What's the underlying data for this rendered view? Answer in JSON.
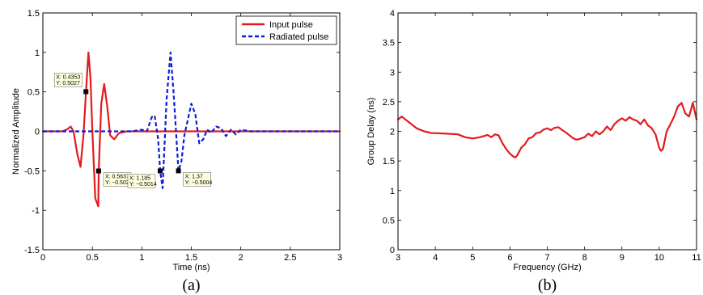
{
  "chart_data": [
    {
      "type": "line",
      "caption": "(a)",
      "xlabel": "Time (ns)",
      "ylabel": "Normalized Amplitude",
      "xlim": [
        0,
        3
      ],
      "ylim": [
        -1.5,
        1.5
      ],
      "xticks": [
        0,
        0.5,
        1,
        1.5,
        2,
        2.5,
        3
      ],
      "xtick_labels": [
        "0",
        "0.5",
        "1",
        "1.5",
        "2",
        "2.5",
        "3"
      ],
      "yticks": [
        -1.5,
        -1,
        -0.5,
        0,
        0.5,
        1,
        1.5
      ],
      "ytick_labels": [
        "-1.5",
        "-1",
        "-0.5",
        "0",
        "0.5",
        "1",
        "1.5"
      ],
      "legend_position": "top-right",
      "grid": false,
      "series": [
        {
          "name": "Input pulse",
          "color": "#e41a1c",
          "style": "solid",
          "x": [
            0,
            0.2,
            0.25,
            0.28,
            0.31,
            0.35,
            0.38,
            0.41,
            0.4353,
            0.46,
            0.48,
            0.5,
            0.53,
            0.56,
            0.5637,
            0.59,
            0.62,
            0.65,
            0.68,
            0.72,
            0.77,
            0.85,
            3
          ],
          "y": [
            0,
            0,
            0.03,
            0.06,
            0.0,
            -0.3,
            -0.45,
            -0.05,
            0.5027,
            1.0,
            0.7,
            0.0,
            -0.85,
            -0.95,
            -0.5021,
            0.35,
            0.6,
            0.32,
            -0.05,
            -0.1,
            -0.02,
            0,
            0
          ]
        },
        {
          "name": "Radiated pulse",
          "color": "#0a1ed8",
          "style": "dashed",
          "x": [
            0,
            0.6,
            0.9,
            1.0,
            1.05,
            1.1,
            1.13,
            1.165,
            1.185,
            1.21,
            1.25,
            1.29,
            1.32,
            1.35,
            1.37,
            1.4,
            1.43,
            1.46,
            1.5,
            1.54,
            1.58,
            1.62,
            1.66,
            1.7,
            1.75,
            1.8,
            1.85,
            1.9,
            1.95,
            2.0,
            2.1,
            3
          ],
          "y": [
            0,
            0,
            0,
            0.02,
            0.0,
            0.18,
            0.2,
            -0.1,
            -0.5014,
            -0.72,
            0.4,
            1.0,
            0.5,
            -0.1,
            -0.5004,
            -0.38,
            -0.05,
            0.12,
            0.35,
            0.22,
            -0.15,
            -0.1,
            0.02,
            -0.02,
            0.06,
            0.04,
            -0.06,
            0.02,
            -0.04,
            0.02,
            0,
            0
          ]
        }
      ],
      "datatips": [
        {
          "x": 0.4353,
          "y": 0.5027,
          "line1": "X: 0.4353",
          "line2": "Y: 0.5027"
        },
        {
          "x": 0.5637,
          "y": -0.5021,
          "line1": "X: 0.5637",
          "line2": "Y: −0.5021"
        },
        {
          "x": 1.185,
          "y": -0.5014,
          "line1": "X: 1.185",
          "line2": "Y: −0.5014"
        },
        {
          "x": 1.37,
          "y": -0.5004,
          "line1": "X: 1.37",
          "line2": "Y: −0.5004"
        }
      ]
    },
    {
      "type": "line",
      "caption": "(b)",
      "xlabel": "Frequency (GHz)",
      "ylabel": "Group Delay (ns)",
      "xlim": [
        3,
        11
      ],
      "ylim": [
        0,
        4
      ],
      "xticks": [
        3,
        4,
        5,
        6,
        7,
        8,
        9,
        10,
        11
      ],
      "xtick_labels": [
        "3",
        "4",
        "5",
        "6",
        "7",
        "8",
        "9",
        "10",
        "11"
      ],
      "yticks": [
        0,
        0.5,
        1,
        1.5,
        2,
        2.5,
        3,
        3.5,
        4
      ],
      "ytick_labels": [
        "0",
        "0.5",
        "1",
        "1.5",
        "2",
        "2.5",
        "3",
        "3.5",
        "4"
      ],
      "grid": false,
      "series": [
        {
          "color": "#e41a1c",
          "style": "solid",
          "x": [
            3,
            3.1,
            3.3,
            3.5,
            3.7,
            3.9,
            4.0,
            4.3,
            4.6,
            4.8,
            5.0,
            5.2,
            5.4,
            5.5,
            5.6,
            5.7,
            5.8,
            5.9,
            6.0,
            6.1,
            6.15,
            6.2,
            6.3,
            6.4,
            6.5,
            6.6,
            6.7,
            6.8,
            6.9,
            7.0,
            7.1,
            7.2,
            7.3,
            7.4,
            7.5,
            7.6,
            7.7,
            7.8,
            7.9,
            8.0,
            8.1,
            8.2,
            8.3,
            8.4,
            8.5,
            8.6,
            8.7,
            8.8,
            8.9,
            9.0,
            9.1,
            9.2,
            9.3,
            9.4,
            9.5,
            9.6,
            9.7,
            9.8,
            9.9,
            10.0,
            10.05,
            10.1,
            10.15,
            10.2,
            10.3,
            10.4,
            10.5,
            10.6,
            10.7,
            10.8,
            10.9,
            11.0
          ],
          "y": [
            2.2,
            2.25,
            2.15,
            2.05,
            2.0,
            1.97,
            1.97,
            1.96,
            1.95,
            1.9,
            1.88,
            1.9,
            1.94,
            1.9,
            1.95,
            1.93,
            1.8,
            1.7,
            1.62,
            1.57,
            1.56,
            1.6,
            1.72,
            1.78,
            1.88,
            1.9,
            1.97,
            1.98,
            2.03,
            2.05,
            2.02,
            2.06,
            2.07,
            2.02,
            1.98,
            1.93,
            1.88,
            1.86,
            1.88,
            1.9,
            1.96,
            1.92,
            2.0,
            1.95,
            2.0,
            2.08,
            2.02,
            2.12,
            2.18,
            2.22,
            2.18,
            2.24,
            2.2,
            2.18,
            2.12,
            2.2,
            2.1,
            2.05,
            1.95,
            1.72,
            1.67,
            1.7,
            1.85,
            2.0,
            2.12,
            2.25,
            2.42,
            2.48,
            2.3,
            2.25,
            2.48,
            2.2
          ]
        }
      ]
    }
  ]
}
